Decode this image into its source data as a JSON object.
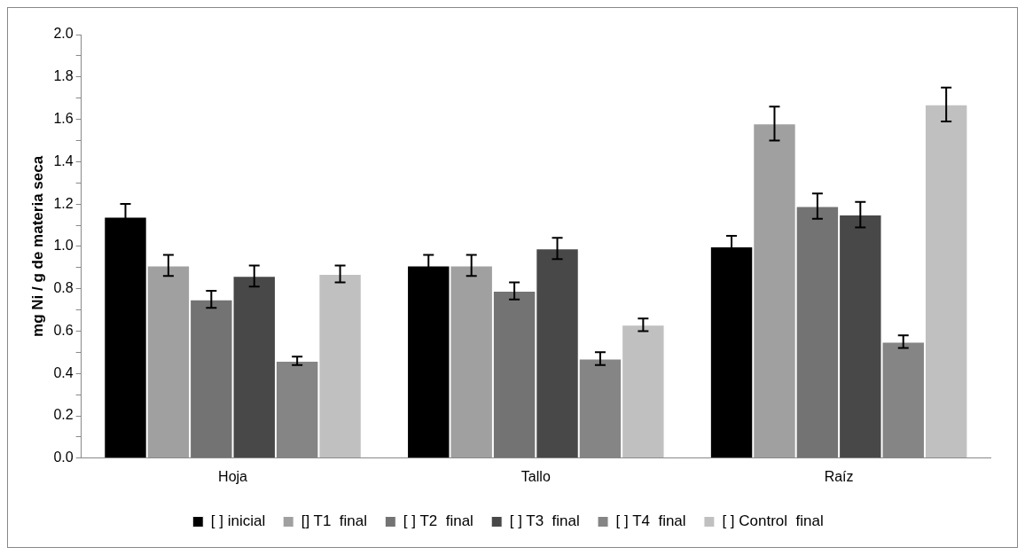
{
  "chart_data": {
    "type": "bar",
    "ylabel": "mg Ni / g de materia seca",
    "categories": [
      "Hoja",
      "Tallo",
      "Raíz"
    ],
    "series": [
      {
        "name": "[ ] inicial",
        "color": "#000000",
        "values": [
          1.14,
          0.91,
          1.0
        ],
        "errors": [
          0.06,
          0.05,
          0.05
        ]
      },
      {
        "name": "[] T1  final",
        "color": "#a0a0a0",
        "values": [
          0.91,
          0.91,
          1.58
        ],
        "errors": [
          0.05,
          0.05,
          0.08
        ]
      },
      {
        "name": "[ ] T2  final",
        "color": "#737373",
        "values": [
          0.75,
          0.79,
          1.19
        ],
        "errors": [
          0.04,
          0.04,
          0.06
        ]
      },
      {
        "name": "[ ] T3  final",
        "color": "#484848",
        "values": [
          0.86,
          0.99,
          1.15
        ],
        "errors": [
          0.05,
          0.05,
          0.06
        ]
      },
      {
        "name": "[ ] T4  final",
        "color": "#858585",
        "values": [
          0.46,
          0.47,
          0.55
        ],
        "errors": [
          0.02,
          0.03,
          0.03
        ]
      },
      {
        "name": "[ ] Control  final",
        "color": "#c0c0c0",
        "values": [
          0.87,
          0.63,
          1.67
        ],
        "errors": [
          0.04,
          0.03,
          0.08
        ]
      }
    ],
    "ylim": [
      0,
      2
    ],
    "yticks": [
      {
        "value": 0,
        "label": "0.0"
      },
      {
        "value": 0.1,
        "label": null
      },
      {
        "value": 0.2,
        "label": "0.2"
      },
      {
        "value": 0.3,
        "label": null
      },
      {
        "value": 0.4,
        "label": "0.4"
      },
      {
        "value": 0.5,
        "label": null
      },
      {
        "value": 0.6,
        "label": "0.6"
      },
      {
        "value": 0.7,
        "label": null
      },
      {
        "value": 0.8,
        "label": "0.8"
      },
      {
        "value": 0.9,
        "label": null
      },
      {
        "value": 1.0,
        "label": "1.0"
      },
      {
        "value": 1.1,
        "label": null
      },
      {
        "value": 1.2,
        "label": "1.2"
      },
      {
        "value": 1.3,
        "label": null
      },
      {
        "value": 1.4,
        "label": "1.4"
      },
      {
        "value": 1.5,
        "label": null
      },
      {
        "value": 1.6,
        "label": "1.6"
      },
      {
        "value": 1.7,
        "label": null
      },
      {
        "value": 1.8,
        "label": "1.8"
      },
      {
        "value": 1.9,
        "label": null
      },
      {
        "value": 2.0,
        "label": "2.0"
      }
    ],
    "grid": false,
    "legend": "bottom"
  }
}
